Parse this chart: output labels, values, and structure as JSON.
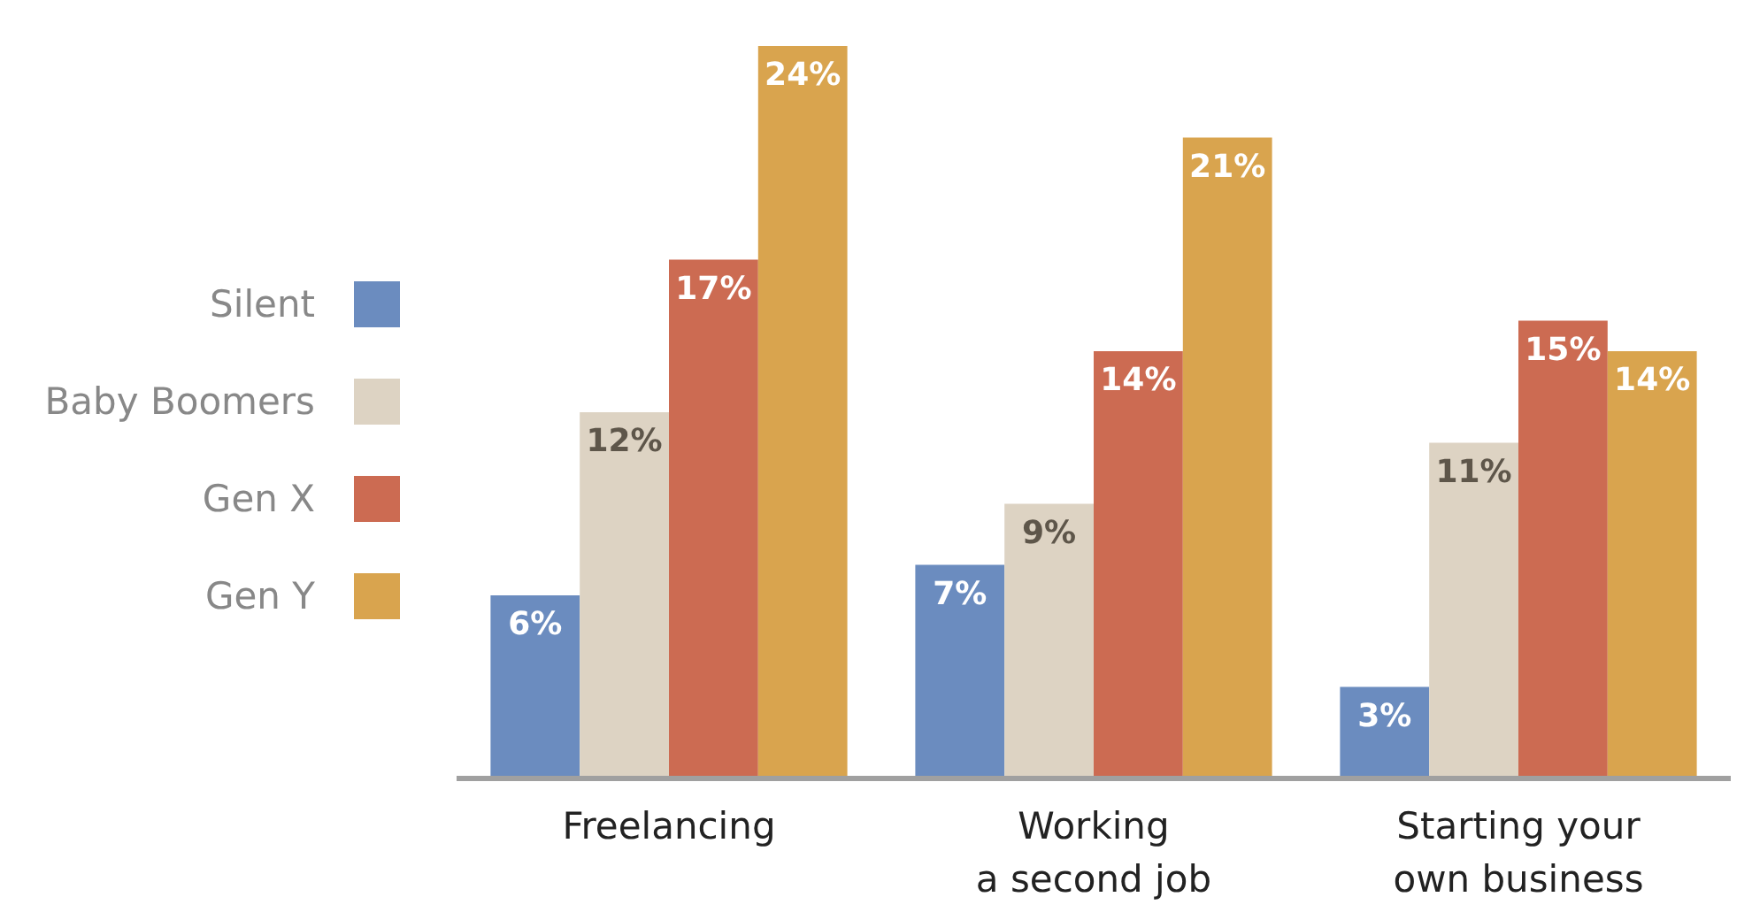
{
  "chart_data": {
    "type": "bar",
    "categories": [
      "Freelancing",
      "Working\na second job",
      "Starting your\nown business"
    ],
    "series": [
      {
        "name": "Silent",
        "color": "#6b8cbf",
        "values": [
          6,
          7,
          3
        ],
        "value_labels": [
          "6%",
          "7%",
          "3%"
        ]
      },
      {
        "name": "Baby Boomers",
        "color": "#ddd3c3",
        "values": [
          12,
          9,
          11
        ],
        "value_labels": [
          "12%",
          "9%",
          "11%"
        ]
      },
      {
        "name": "Gen X",
        "color": "#cc6b52",
        "values": [
          17,
          14,
          15
        ],
        "value_labels": [
          "17%",
          "14%",
          "15%"
        ]
      },
      {
        "name": "Gen Y",
        "color": "#d9a44e",
        "values": [
          24,
          21,
          14
        ],
        "value_labels": [
          "24%",
          "21%",
          "14%"
        ]
      }
    ],
    "legend": "left",
    "tick_labels": "x"
  }
}
